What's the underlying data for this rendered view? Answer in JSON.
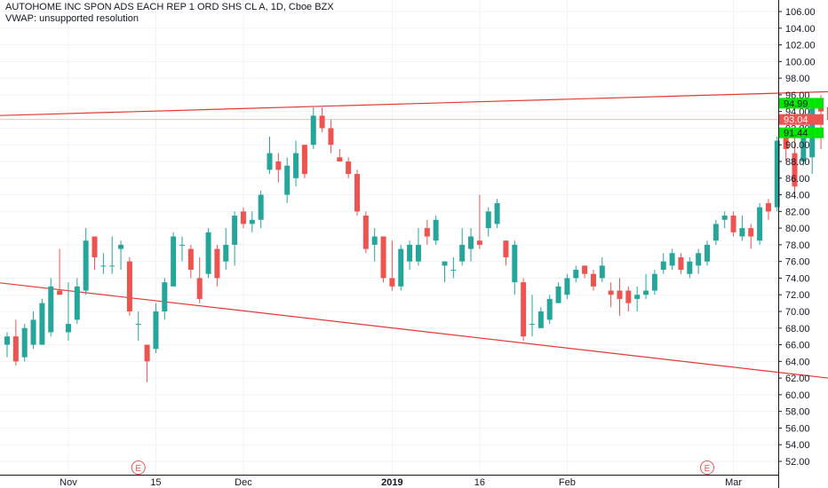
{
  "header": {
    "title": "AUTOHOME INC SPON ADS EACH REP 1 ORD SHS CL A, 1D, Cboe BZX",
    "indicator": "VWAP: unsupported resolution"
  },
  "colors": {
    "up": "#26a69a",
    "down": "#ef5350",
    "trendline": "#e53935",
    "price_label": "#ef5350",
    "level_label": "#00e600",
    "level_line": "#4caf50",
    "axis_text": "#131722",
    "grid": "#f0f3fa"
  },
  "chart_data": {
    "type": "candlestick",
    "y_axis": {
      "min": 50,
      "max": 108,
      "ticks": [
        "52.00",
        "54.00",
        "56.00",
        "58.00",
        "60.00",
        "62.00",
        "64.00",
        "66.00",
        "68.00",
        "70.00",
        "72.00",
        "74.00",
        "76.00",
        "78.00",
        "80.00",
        "82.00",
        "84.00",
        "86.00",
        "88.00",
        "90.00",
        "92.00",
        "94.00",
        "96.00",
        "98.00",
        "100.00",
        "102.00",
        "104.00",
        "106.00"
      ]
    },
    "x_axis": {
      "labels": [
        {
          "text": "Nov",
          "index": 7
        },
        {
          "text": "15",
          "index": 17
        },
        {
          "text": "Dec",
          "index": 27
        },
        {
          "text": "2019",
          "index": 44
        },
        {
          "text": "16",
          "index": 54
        },
        {
          "text": "Feb",
          "index": 64
        },
        {
          "text": "Mar",
          "index": 83
        }
      ]
    },
    "candles": [
      {
        "o": 66,
        "h": 67.5,
        "l": 64.5,
        "c": 67
      },
      {
        "o": 67,
        "h": 69,
        "l": 63.5,
        "c": 64
      },
      {
        "o": 64.5,
        "h": 68.5,
        "l": 64,
        "c": 68
      },
      {
        "o": 66,
        "h": 70,
        "l": 65.5,
        "c": 69
      },
      {
        "o": 66,
        "h": 71.5,
        "l": 66,
        "c": 71
      },
      {
        "o": 67.5,
        "h": 74,
        "l": 67,
        "c": 73
      },
      {
        "o": 72.5,
        "h": 77.5,
        "l": 72,
        "c": 72
      },
      {
        "o": 67.5,
        "h": 73.5,
        "l": 66.5,
        "c": 68.5
      },
      {
        "o": 69,
        "h": 74,
        "l": 68.5,
        "c": 73
      },
      {
        "o": 72.5,
        "h": 80,
        "l": 72,
        "c": 78.5
      },
      {
        "o": 79,
        "h": 79,
        "l": 75,
        "c": 76.5
      },
      {
        "o": 75.5,
        "h": 77,
        "l": 74.5,
        "c": 75.5
      },
      {
        "o": 75.5,
        "h": 79,
        "l": 74.5,
        "c": 75.5
      },
      {
        "o": 77.5,
        "h": 78.5,
        "l": 75,
        "c": 78
      },
      {
        "o": 76,
        "h": 76.5,
        "l": 69.5,
        "c": 70
      },
      {
        "o": 68.5,
        "h": 70,
        "l": 66.5,
        "c": 68.5
      },
      {
        "o": 66,
        "h": 66,
        "l": 61.5,
        "c": 64
      },
      {
        "o": 65.5,
        "h": 71,
        "l": 65,
        "c": 70
      },
      {
        "o": 70,
        "h": 74,
        "l": 69,
        "c": 73.5
      },
      {
        "o": 73,
        "h": 79.5,
        "l": 73,
        "c": 79
      },
      {
        "o": 78,
        "h": 79,
        "l": 76,
        "c": 78
      },
      {
        "o": 77.5,
        "h": 78,
        "l": 74,
        "c": 75
      },
      {
        "o": 74,
        "h": 76.5,
        "l": 71,
        "c": 71.5
      },
      {
        "o": 74.5,
        "h": 80,
        "l": 74,
        "c": 79.5
      },
      {
        "o": 77.5,
        "h": 78,
        "l": 73,
        "c": 74
      },
      {
        "o": 76,
        "h": 80,
        "l": 75,
        "c": 78
      },
      {
        "o": 78,
        "h": 82,
        "l": 75.5,
        "c": 81.5
      },
      {
        "o": 82,
        "h": 82.5,
        "l": 80,
        "c": 80.5
      },
      {
        "o": 80.5,
        "h": 82,
        "l": 79.5,
        "c": 81
      },
      {
        "o": 81,
        "h": 84.5,
        "l": 80,
        "c": 84
      },
      {
        "o": 87,
        "h": 91,
        "l": 86.5,
        "c": 89
      },
      {
        "o": 88,
        "h": 89,
        "l": 85.5,
        "c": 87
      },
      {
        "o": 84,
        "h": 88.5,
        "l": 83,
        "c": 87.5
      },
      {
        "o": 86,
        "h": 90.5,
        "l": 85,
        "c": 89
      },
      {
        "o": 90,
        "h": 90,
        "l": 86,
        "c": 86.5
      },
      {
        "o": 90,
        "h": 94.5,
        "l": 89.5,
        "c": 93.5
      },
      {
        "o": 93.5,
        "h": 94.5,
        "l": 91.5,
        "c": 92
      },
      {
        "o": 92,
        "h": 93,
        "l": 89,
        "c": 90
      },
      {
        "o": 88.5,
        "h": 89.5,
        "l": 88,
        "c": 88
      },
      {
        "o": 88,
        "h": 88.5,
        "l": 86,
        "c": 86.5
      },
      {
        "o": 86.5,
        "h": 87,
        "l": 81.5,
        "c": 82
      },
      {
        "o": 81.5,
        "h": 82,
        "l": 77,
        "c": 77.5
      },
      {
        "o": 78,
        "h": 80,
        "l": 76,
        "c": 79
      },
      {
        "o": 79,
        "h": 79,
        "l": 73.5,
        "c": 74
      },
      {
        "o": 74,
        "h": 78.5,
        "l": 72.5,
        "c": 73
      },
      {
        "o": 73,
        "h": 78,
        "l": 72.5,
        "c": 77.5
      },
      {
        "o": 76,
        "h": 78.5,
        "l": 75,
        "c": 78
      },
      {
        "o": 76,
        "h": 80,
        "l": 75.5,
        "c": 78
      },
      {
        "o": 80,
        "h": 81,
        "l": 78,
        "c": 79
      },
      {
        "o": 78.5,
        "h": 81.5,
        "l": 78,
        "c": 81
      },
      {
        "o": 75.5,
        "h": 76,
        "l": 73.5,
        "c": 76
      },
      {
        "o": 75,
        "h": 76.5,
        "l": 74,
        "c": 75
      }
    ],
    "candles2": [
      {
        "o": 76,
        "h": 80,
        "l": 75.5,
        "c": 78
      },
      {
        "o": 77.5,
        "h": 80,
        "l": 76,
        "c": 79
      },
      {
        "o": 78.5,
        "h": 84,
        "l": 77.5,
        "c": 78
      },
      {
        "o": 80,
        "h": 82.5,
        "l": 79,
        "c": 82
      },
      {
        "o": 80.5,
        "h": 83.5,
        "l": 80,
        "c": 83
      },
      {
        "o": 78.5,
        "h": 78.5,
        "l": 75.5,
        "c": 76.5
      },
      {
        "o": 73.5,
        "h": 78.5,
        "l": 72,
        "c": 78
      },
      {
        "o": 73.5,
        "h": 74,
        "l": 66.5,
        "c": 67
      },
      {
        "o": 68.5,
        "h": 72,
        "l": 67,
        "c": 68.5
      },
      {
        "o": 68,
        "h": 70.5,
        "l": 68,
        "c": 70
      },
      {
        "o": 69,
        "h": 72,
        "l": 68.5,
        "c": 71.5
      },
      {
        "o": 71,
        "h": 73.5,
        "l": 71,
        "c": 73
      },
      {
        "o": 72,
        "h": 74.5,
        "l": 71.5,
        "c": 74
      },
      {
        "o": 74,
        "h": 75.5,
        "l": 73.5,
        "c": 75
      },
      {
        "o": 75.5,
        "h": 75.5,
        "l": 74,
        "c": 74.5
      },
      {
        "o": 74.5,
        "h": 75,
        "l": 72.5,
        "c": 73
      },
      {
        "o": 74,
        "h": 76.5,
        "l": 73.5,
        "c": 75.5
      },
      {
        "o": 72.5,
        "h": 73.5,
        "l": 70.5,
        "c": 72
      },
      {
        "o": 72.5,
        "h": 74,
        "l": 69.5,
        "c": 71.5
      },
      {
        "o": 72.5,
        "h": 73,
        "l": 70,
        "c": 71
      },
      {
        "o": 71.5,
        "h": 73,
        "l": 70,
        "c": 72
      },
      {
        "o": 72,
        "h": 74.5,
        "l": 71.5,
        "c": 72.5
      },
      {
        "o": 72.5,
        "h": 75,
        "l": 72,
        "c": 74.5
      },
      {
        "o": 75,
        "h": 77,
        "l": 74.5,
        "c": 76
      },
      {
        "o": 75.5,
        "h": 77.5,
        "l": 75,
        "c": 77
      },
      {
        "o": 76.5,
        "h": 77,
        "l": 74.5,
        "c": 75
      },
      {
        "o": 74.5,
        "h": 76.5,
        "l": 74,
        "c": 76
      },
      {
        "o": 75.5,
        "h": 77.5,
        "l": 74.5,
        "c": 77
      },
      {
        "o": 76,
        "h": 78.5,
        "l": 75.5,
        "c": 78
      },
      {
        "o": 78.5,
        "h": 81,
        "l": 78,
        "c": 80.5
      },
      {
        "o": 81,
        "h": 82,
        "l": 80,
        "c": 81.5
      },
      {
        "o": 81.5,
        "h": 82,
        "l": 79,
        "c": 79.5
      },
      {
        "o": 79,
        "h": 81.5,
        "l": 78.5,
        "c": 80
      },
      {
        "o": 80,
        "h": 80.5,
        "l": 77.5,
        "c": 79
      },
      {
        "o": 78.5,
        "h": 83,
        "l": 78,
        "c": 82.5
      },
      {
        "o": 83,
        "h": 83.5,
        "l": 81,
        "c": 82
      },
      {
        "o": 82.5,
        "h": 91,
        "l": 82,
        "c": 90.5
      },
      {
        "o": 91,
        "h": 92,
        "l": 88,
        "c": 89.5
      },
      {
        "o": 89,
        "h": 91,
        "l": 83.5,
        "c": 85
      },
      {
        "o": 88,
        "h": 94,
        "l": 87.5,
        "c": 92
      },
      {
        "o": 88.5,
        "h": 95.5,
        "l": 86.5,
        "c": 95
      },
      {
        "o": 95,
        "h": 96,
        "l": 89.5,
        "c": 94
      },
      {
        "o": 94.5,
        "h": 95,
        "l": 91,
        "c": 93
      }
    ],
    "trendlines": [
      {
        "name": "upper",
        "p1": {
          "index": -1,
          "value": 93.5
        },
        "p2": {
          "index": 98,
          "value": 96.5
        }
      },
      {
        "name": "lower",
        "p1": {
          "index": -1,
          "value": 73.5
        },
        "p2": {
          "index": 98,
          "value": 61.5
        }
      }
    ],
    "levels": [
      {
        "value": 94.99,
        "label": "94.99"
      },
      {
        "value": 91.44,
        "label": "91.44"
      }
    ],
    "last_price": {
      "value": 93.04,
      "label": "93.04"
    },
    "earnings_markers": [
      {
        "label": "E",
        "index": 15
      },
      {
        "label": "E",
        "index": 80
      }
    ]
  }
}
